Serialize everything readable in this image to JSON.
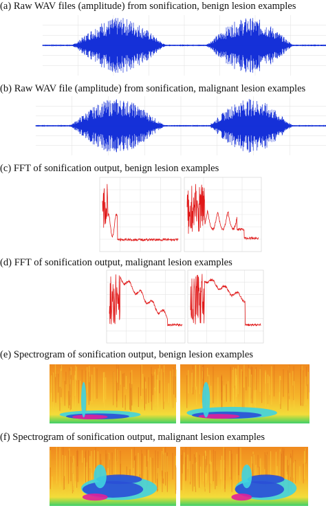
{
  "panels": [
    {
      "label": "(a)",
      "caption": "Raw WAV files (amplitude) from sonification, benign lesion examples"
    },
    {
      "label": "(b)",
      "caption": "Raw WAV file (amplitude) from sonification, malignant lesion examples"
    },
    {
      "label": "(c)",
      "caption": "FFT of sonification output, benign lesion examples"
    },
    {
      "label": "(d)",
      "caption": "FFT of sonification output, malignant lesion examples"
    },
    {
      "label": "(e)",
      "caption": "Spectrogram of sonification output, benign lesion examples"
    },
    {
      "label": "(f)",
      "caption": "Spectrogram of sonification output, malignant lesion examples"
    }
  ]
}
